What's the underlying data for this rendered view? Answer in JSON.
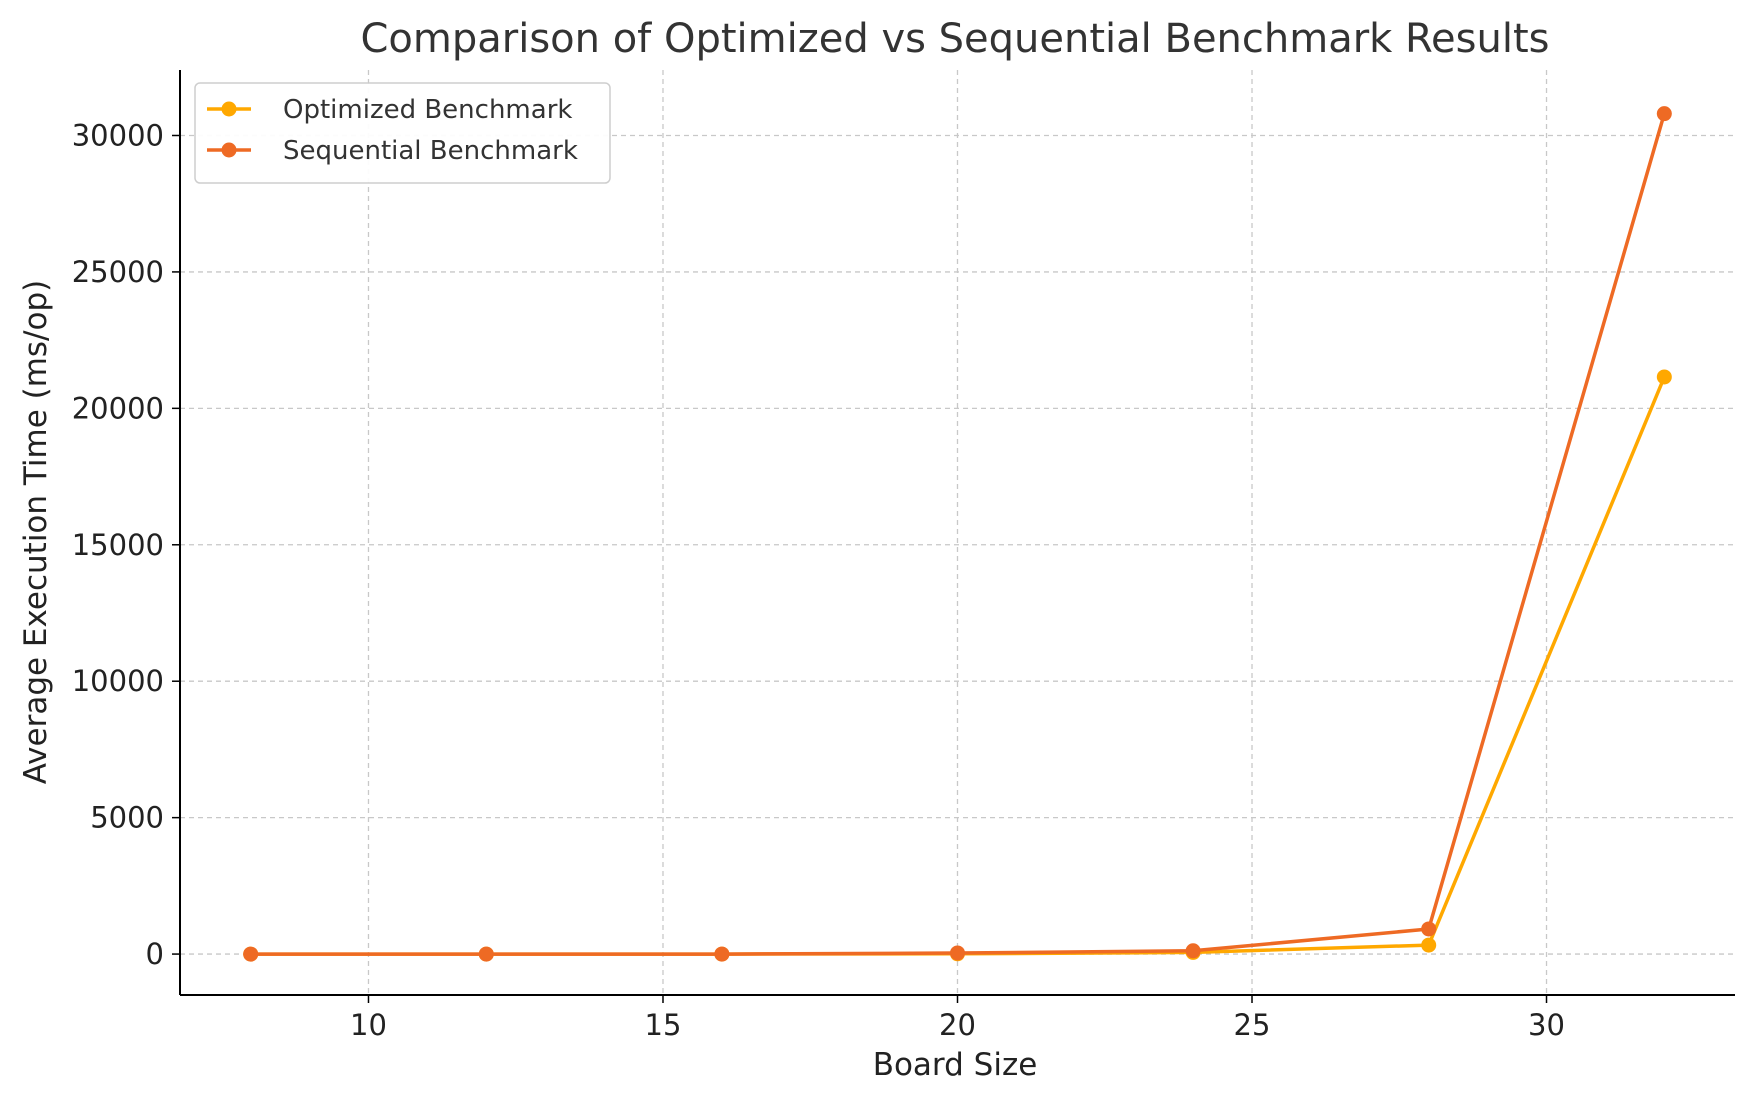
{
  "chart_data": {
    "type": "line",
    "title": "Comparison of Optimized vs Sequential Benchmark Results",
    "xlabel": "Board Size",
    "ylabel": "Average Execution Time (ms/op)",
    "x": [
      8,
      12,
      16,
      20,
      24,
      28,
      32
    ],
    "xlim": [
      6.8,
      33.2
    ],
    "ylim": [
      -1500,
      32400
    ],
    "xticks": [
      10,
      15,
      20,
      25,
      30
    ],
    "yticks": [
      0,
      5000,
      10000,
      15000,
      20000,
      25000,
      30000
    ],
    "grid": true,
    "legend_position": "top-left",
    "series": [
      {
        "name": "Optimized Benchmark",
        "color": "#FFA800",
        "values": [
          0,
          0,
          0,
          10,
          60,
          330,
          21150
        ]
      },
      {
        "name": "Sequential Benchmark",
        "color": "#EE6A24",
        "values": [
          0,
          0,
          0,
          40,
          120,
          920,
          30800
        ]
      }
    ]
  }
}
